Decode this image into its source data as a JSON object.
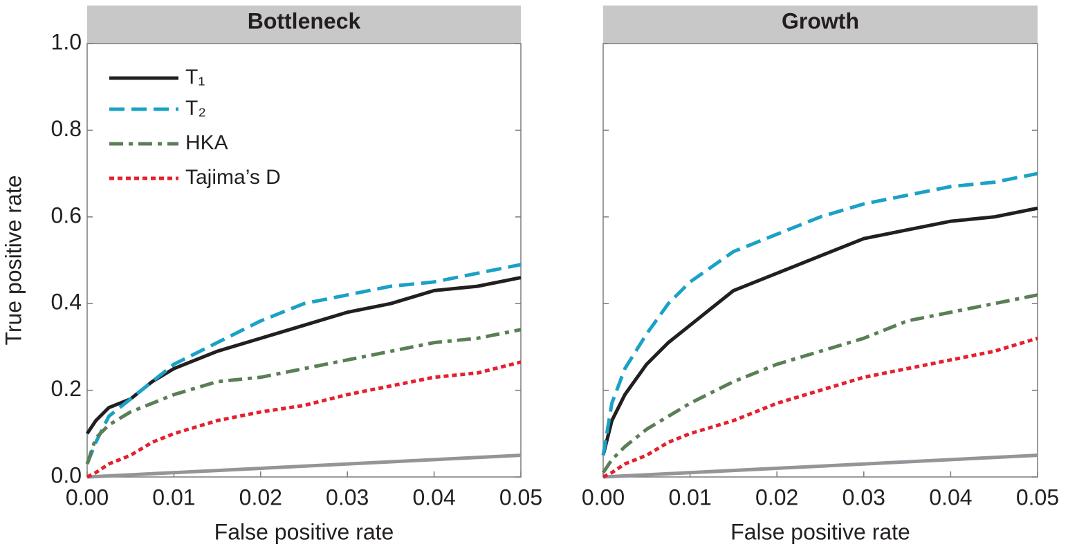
{
  "chart_data": [
    {
      "type": "line",
      "title": "Bottleneck",
      "x_label": "False positive rate",
      "y_label": "True positive rate",
      "x": [
        0,
        0.001,
        0.0025,
        0.005,
        0.0075,
        0.01,
        0.015,
        0.02,
        0.025,
        0.03,
        0.035,
        0.04,
        0.045,
        0.05
      ],
      "series": [
        {
          "name": "T₁",
          "color": "#231f20",
          "style": "solid",
          "values": [
            0.1,
            0.13,
            0.16,
            0.18,
            0.22,
            0.25,
            0.29,
            0.32,
            0.35,
            0.38,
            0.4,
            0.43,
            0.44,
            0.46
          ]
        },
        {
          "name": "T₂",
          "color": "#1ba1c6",
          "style": "dashed",
          "values": [
            0.03,
            0.08,
            0.14,
            0.18,
            0.22,
            0.26,
            0.31,
            0.36,
            0.4,
            0.42,
            0.44,
            0.45,
            0.47,
            0.49
          ]
        },
        {
          "name": "HKA",
          "color": "#5a7f56",
          "style": "dashdot",
          "values": [
            0.03,
            0.09,
            0.12,
            0.15,
            0.17,
            0.19,
            0.22,
            0.23,
            0.25,
            0.27,
            0.29,
            0.31,
            0.32,
            0.34
          ]
        },
        {
          "name": "Tajima’s D",
          "color": "#e5202e",
          "style": "dotted",
          "values": [
            0.0,
            0.01,
            0.03,
            0.05,
            0.08,
            0.1,
            0.13,
            0.15,
            0.165,
            0.19,
            0.21,
            0.23,
            0.24,
            0.265
          ]
        }
      ],
      "xlim": [
        0,
        0.05
      ],
      "ylim": [
        0,
        1
      ],
      "xticks": [
        {
          "value": 0,
          "label": "0.00"
        },
        0.01,
        0.02,
        0.03,
        0.04,
        0.05
      ],
      "yticks": [
        {
          "value": 0,
          "label": "0.0"
        },
        0.2,
        0.4,
        0.6,
        0.8,
        {
          "value": 1,
          "label": "1.0"
        }
      ],
      "ytick_labels": true,
      "legend": "upper left",
      "diagonal_color": "#939598"
    },
    {
      "type": "line",
      "title": "Growth",
      "x_label": "False positive rate",
      "x": [
        0,
        0.001,
        0.0025,
        0.005,
        0.0075,
        0.01,
        0.015,
        0.02,
        0.025,
        0.03,
        0.035,
        0.04,
        0.045,
        0.05
      ],
      "series": [
        {
          "name": "T₁",
          "color": "#231f20",
          "style": "solid",
          "values": [
            0.05,
            0.13,
            0.19,
            0.26,
            0.31,
            0.35,
            0.43,
            0.47,
            0.51,
            0.55,
            0.57,
            0.59,
            0.6,
            0.62
          ]
        },
        {
          "name": "T₂",
          "color": "#1ba1c6",
          "style": "dashed",
          "values": [
            0.05,
            0.17,
            0.25,
            0.33,
            0.4,
            0.45,
            0.52,
            0.56,
            0.6,
            0.63,
            0.65,
            0.67,
            0.68,
            0.7
          ]
        },
        {
          "name": "HKA",
          "color": "#5a7f56",
          "style": "dashdot",
          "values": [
            0.01,
            0.04,
            0.07,
            0.11,
            0.14,
            0.17,
            0.22,
            0.26,
            0.29,
            0.32,
            0.36,
            0.38,
            0.4,
            0.42
          ]
        },
        {
          "name": "Tajima’s D",
          "color": "#e5202e",
          "style": "dotted",
          "values": [
            0.0,
            0.01,
            0.03,
            0.05,
            0.08,
            0.1,
            0.13,
            0.17,
            0.2,
            0.23,
            0.25,
            0.27,
            0.29,
            0.32
          ]
        }
      ],
      "xlim": [
        0,
        0.05
      ],
      "ylim": [
        0,
        1
      ],
      "xticks": [
        {
          "value": 0,
          "label": "0.00"
        },
        0.01,
        0.02,
        0.03,
        0.04,
        0.05
      ],
      "yticks": [
        {
          "value": 0,
          "label": "0.0"
        },
        0.2,
        0.4,
        0.6,
        0.8,
        {
          "value": 1,
          "label": "1.0"
        }
      ],
      "ytick_labels": false,
      "legend": false,
      "diagonal_color": "#939598"
    }
  ]
}
